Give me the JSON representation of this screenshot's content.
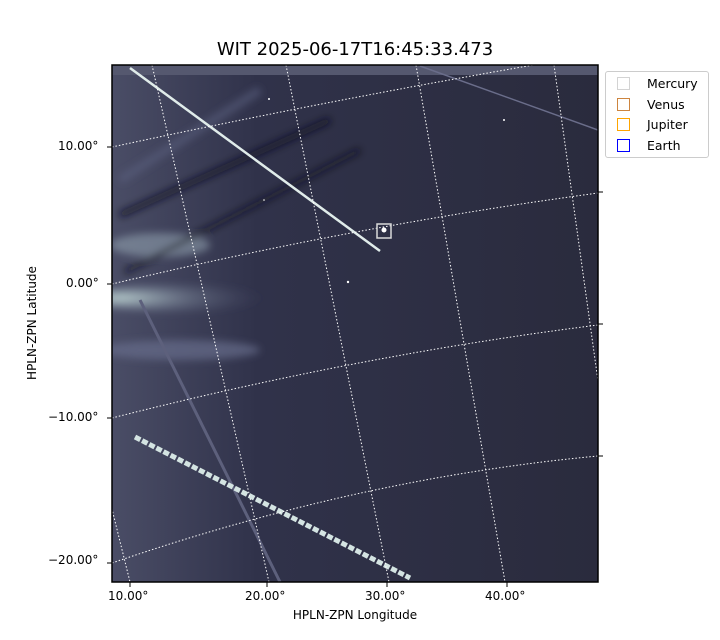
{
  "chart_data": {
    "type": "image",
    "title": "WIT 2025-06-17T16:45:33.473",
    "xlabel": "HPLN-ZPN Longitude",
    "ylabel": "HPLN-ZPN Latitude",
    "x_ticks": [
      "10.00°",
      "20.00°",
      "30.00°",
      "40.00°"
    ],
    "y_ticks": [
      "10.00°",
      "0.00°",
      "−10.00°",
      "−20.00°"
    ],
    "grid": true,
    "colormap": "bone",
    "legend_placement": "outside-top-right",
    "legend": [
      {
        "name": "Mercury",
        "color": "#d3d3d3"
      },
      {
        "name": "Venus",
        "color": "#cd853f"
      },
      {
        "name": "Jupiter",
        "color": "#ffa500"
      },
      {
        "name": "Earth",
        "color": "#0000ff"
      }
    ]
  }
}
